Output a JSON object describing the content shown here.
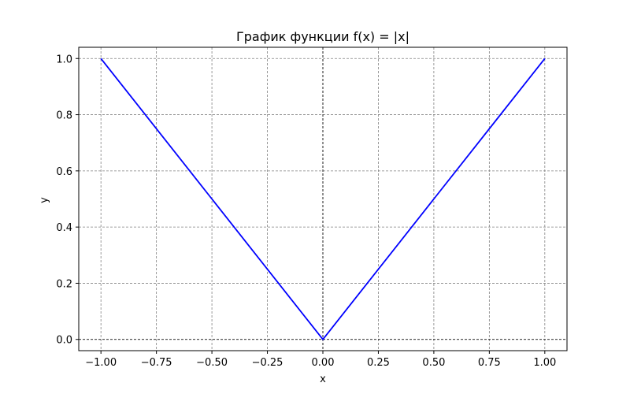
{
  "chart_data": {
    "type": "line",
    "title": "График функции f(x) = |x|",
    "xlabel": "x",
    "ylabel": "y",
    "xlim": [
      -1.1,
      1.1
    ],
    "ylim": [
      -0.04,
      1.04
    ],
    "x_ticks": [
      -1.0,
      -0.75,
      -0.5,
      -0.25,
      0.0,
      0.25,
      0.5,
      0.75,
      1.0
    ],
    "x_tick_labels": [
      "−1.00",
      "−0.75",
      "−0.50",
      "−0.25",
      "0.00",
      "0.25",
      "0.50",
      "0.75",
      "1.00"
    ],
    "y_ticks": [
      0.0,
      0.2,
      0.4,
      0.6,
      0.8,
      1.0
    ],
    "y_tick_labels": [
      "0.0",
      "0.2",
      "0.4",
      "0.6",
      "0.8",
      "1.0"
    ],
    "grid": true,
    "reference_lines": {
      "x": 0,
      "y": 0
    },
    "series": [
      {
        "color": "#0000ff",
        "x": [
          -1.0,
          -0.5,
          0.0,
          0.01,
          0.5,
          1.0
        ],
        "y": [
          1.0,
          0.5,
          0.0,
          0.01,
          0.5,
          1.0
        ]
      }
    ]
  }
}
